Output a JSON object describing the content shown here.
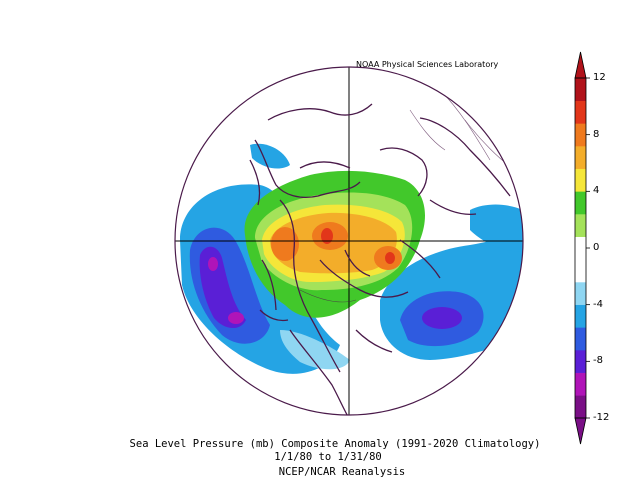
{
  "credit": "NOAA Physical Sciences Laboratory",
  "caption": {
    "line1": "Sea Level Pressure (mb) Composite Anomaly (1991-2020 Climatology)",
    "line2": "1/1/80  to 1/31/80",
    "line3": "NCEP/NCAR Reanalysis"
  },
  "colorbar": {
    "levels": [
      "12",
      "8",
      "4",
      "0",
      "-4",
      "-8",
      "-12"
    ],
    "colors": [
      "#7a0f86",
      "#b014b8",
      "#5a1fd6",
      "#2f5be0",
      "#25a4e4",
      "#8fd6f2",
      "#ffffff",
      "#ffffff",
      "#a4e25a",
      "#42c82b",
      "#f5e639",
      "#f3ad2a",
      "#ef7a1e",
      "#e2361a",
      "#b0121a"
    ]
  },
  "map": {
    "projection": "North polar stereographic",
    "colors": {
      "coastline": "#4a1a4a",
      "grid": "#000000",
      "boundary": "#4a1a4a"
    }
  }
}
